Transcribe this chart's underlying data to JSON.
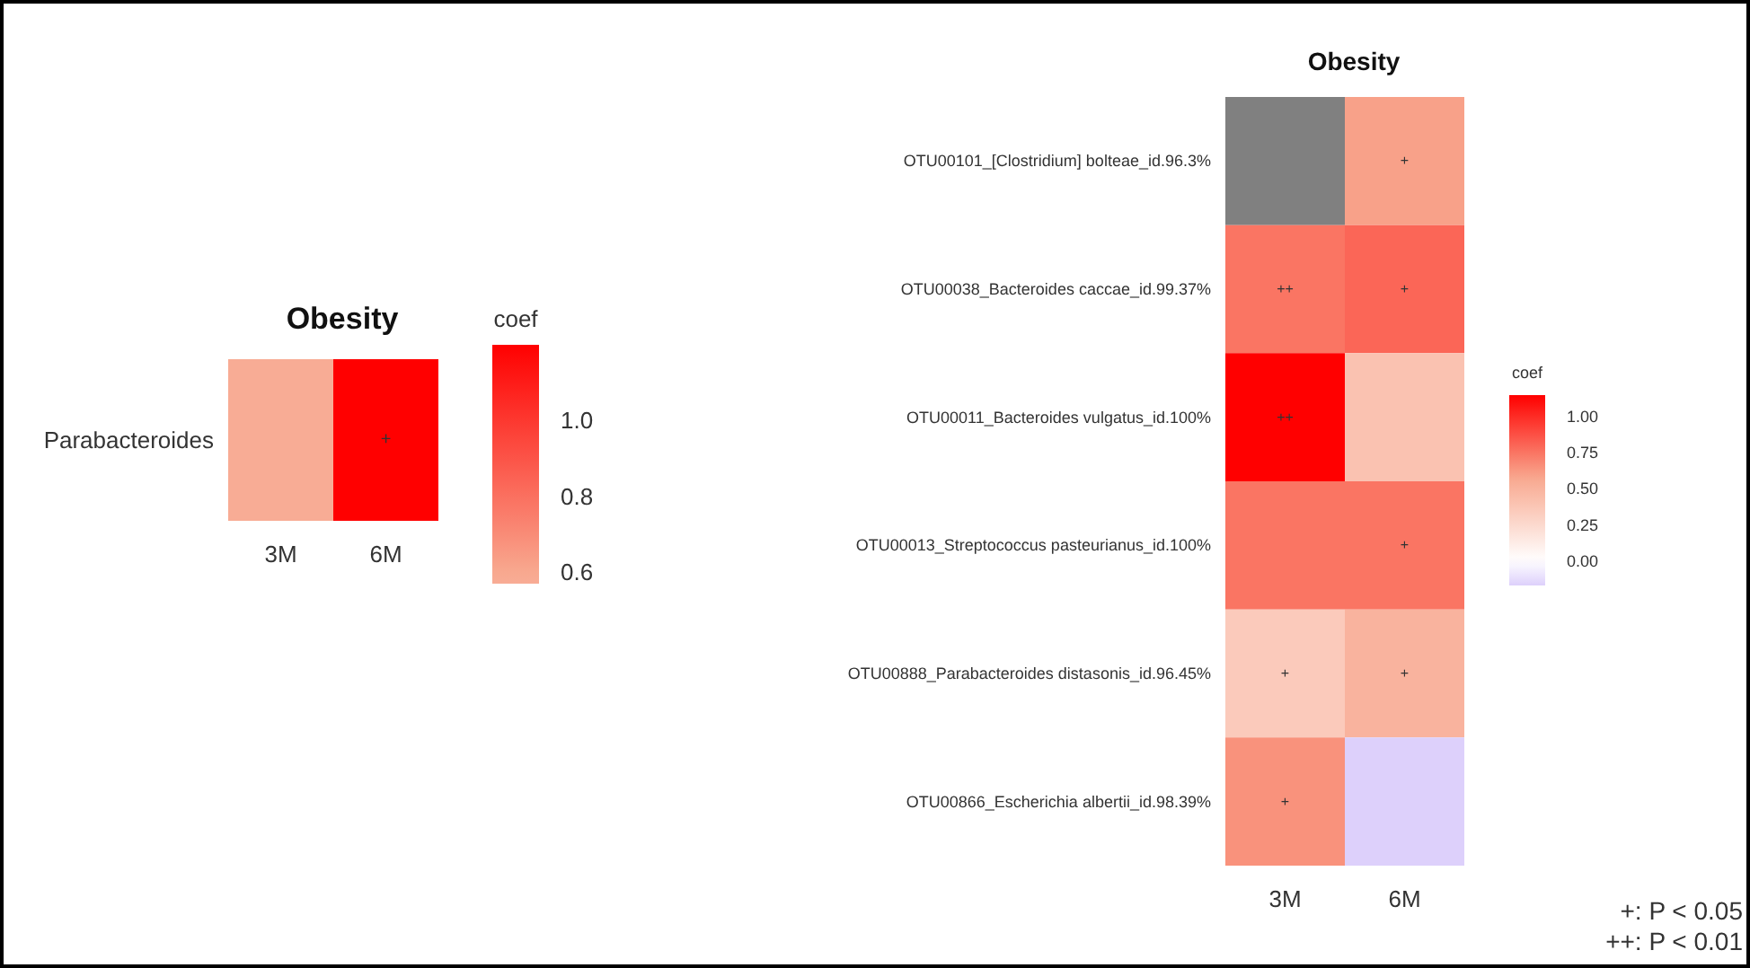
{
  "chart_data": [
    {
      "type": "heatmap",
      "title": "Obesity",
      "categories": [
        "3M",
        "6M"
      ],
      "y_categories": [
        "Parabacteroides"
      ],
      "cells": [
        [
          0.57,
          1.2
        ]
      ],
      "cell_labels": [
        [
          null,
          "+"
        ]
      ],
      "clabel": "coef",
      "clim": [
        0.57,
        1.2
      ],
      "cticks": [
        {
          "value": 0.6,
          "label": "0.6"
        },
        {
          "value": 0.8,
          "label": "0.8"
        },
        {
          "value": 1,
          "label": "1.0"
        }
      ]
    },
    {
      "type": "heatmap",
      "title": "Obesity",
      "categories": [
        "3M",
        "6M"
      ],
      "y_categories": [
        "OTU00101_[Clostridium] bolteae_id.96.3%",
        "OTU00038_Bacteroides caccae_id.99.37%",
        "OTU00011_Bacteroides vulgatus_id.100%",
        "OTU00013_Streptococcus pasteurianus_id.100%",
        "OTU00888_Parabacteroides distasonis_id.96.45%",
        "OTU00866_Escherichia albertii_id.98.39%"
      ],
      "cells": [
        [
          null,
          0.6
        ],
        [
          0.75,
          0.8
        ],
        [
          1.15,
          0.4
        ],
        [
          0.75,
          0.75
        ],
        [
          0.35,
          0.5
        ],
        [
          0.65,
          -0.17
        ]
      ],
      "cell_labels": [
        [
          null,
          "+"
        ],
        [
          "++",
          "+"
        ],
        [
          "++",
          null
        ],
        [
          null,
          "+"
        ],
        [
          "+",
          "+"
        ],
        [
          "+",
          null
        ]
      ],
      "clabel": "coef",
      "clim": [
        -0.17,
        1.15
      ],
      "cticks": [
        {
          "value": 0,
          "label": "0.00"
        },
        {
          "value": 0.25,
          "label": "0.25"
        },
        {
          "value": 0.5,
          "label": "0.50"
        },
        {
          "value": 0.75,
          "label": "0.75"
        },
        {
          "value": 1,
          "label": "1.00"
        }
      ],
      "annotations": [
        "+: P < 0.05",
        "++: P < 0.01"
      ]
    }
  ]
}
